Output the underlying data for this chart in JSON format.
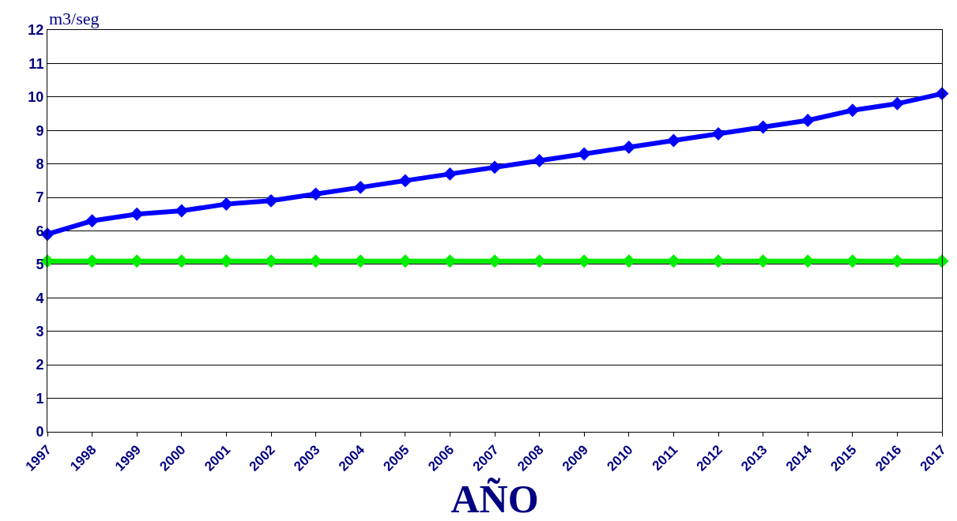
{
  "chart_data": {
    "type": "line",
    "xlabel": "AÑO",
    "ylabel": "m3/seg",
    "x": [
      1997,
      1998,
      1999,
      2000,
      2001,
      2002,
      2003,
      2004,
      2005,
      2006,
      2007,
      2008,
      2009,
      2010,
      2011,
      2012,
      2013,
      2014,
      2015,
      2016,
      2017
    ],
    "series": [
      {
        "color": "#0000ff",
        "values": [
          5.9,
          6.3,
          6.5,
          6.6,
          6.8,
          6.9,
          7.1,
          7.3,
          7.5,
          7.7,
          7.9,
          8.1,
          8.3,
          8.5,
          8.7,
          8.9,
          9.1,
          9.3,
          9.6,
          9.8,
          10.1
        ]
      },
      {
        "color": "#00ee00",
        "values": [
          5.1,
          5.1,
          5.1,
          5.1,
          5.1,
          5.1,
          5.1,
          5.1,
          5.1,
          5.1,
          5.1,
          5.1,
          5.1,
          5.1,
          5.1,
          5.1,
          5.1,
          5.1,
          5.1,
          5.1,
          5.1
        ]
      }
    ],
    "xlim": [
      1997,
      2017
    ],
    "xticks": [
      1997,
      1998,
      1999,
      2000,
      2001,
      2002,
      2003,
      2004,
      2005,
      2006,
      2007,
      2008,
      2009,
      2010,
      2011,
      2012,
      2013,
      2014,
      2015,
      2016,
      2017
    ],
    "ylim": [
      0,
      12
    ],
    "yticks": [
      0,
      1,
      2,
      3,
      4,
      5,
      6,
      7,
      8,
      9,
      10,
      11,
      12
    ],
    "grid": "y",
    "marker": "diamond",
    "line_style": "solid"
  }
}
